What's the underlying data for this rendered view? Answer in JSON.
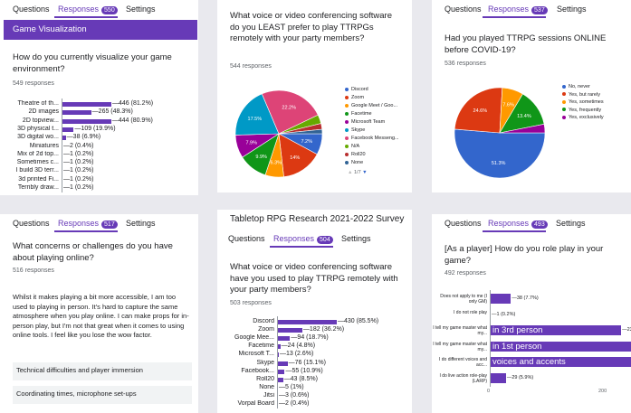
{
  "p1": {
    "tabs": [
      "Questions",
      "Responses",
      "Settings"
    ],
    "count": "550",
    "section": "Game Visualization",
    "question": "How do you currently visualize your game environment?",
    "responses": "549 responses",
    "rows": [
      {
        "label": "Theatre of th...",
        "value": 446,
        "text": "446 (81.2%)"
      },
      {
        "label": "2D images",
        "value": 265,
        "text": "265 (48.3%)"
      },
      {
        "label": "2D topview...",
        "value": 444,
        "text": "444 (80.9%)"
      },
      {
        "label": "3D physical t...",
        "value": 109,
        "text": "109 (19.9%)"
      },
      {
        "label": "3D digital wo...",
        "value": 38,
        "text": "38 (6.9%)"
      },
      {
        "label": "Miniatures",
        "value": 2,
        "text": "2 (0.4%)"
      },
      {
        "label": "Mix of 2d top...",
        "value": 1,
        "text": "1 (0.2%)"
      },
      {
        "label": "Sometimes c...",
        "value": 1,
        "text": "1 (0.2%)"
      },
      {
        "label": "I build 3D terr...",
        "value": 1,
        "text": "1 (0.2%)"
      },
      {
        "label": "3d printed Fi...",
        "value": 1,
        "text": "1 (0.2%)"
      },
      {
        "label": "Terribly draw...",
        "value": 1,
        "text": "1 (0.2%)"
      }
    ]
  },
  "p2": {
    "question": "What voice or video conferencing software do you LEAST prefer to play TTRPGs remotely with your party members?",
    "responses": "544 responses",
    "slices": [
      {
        "label": "Discord",
        "value": 7.2,
        "color": "#3366cc"
      },
      {
        "label": "Zoom",
        "value": 14,
        "color": "#dc3912"
      },
      {
        "label": "Google Meet / Goo...",
        "value": 6.3,
        "color": "#ff9900"
      },
      {
        "label": "Facetime",
        "value": 9.9,
        "color": "#109618"
      },
      {
        "label": "Microsoft Team",
        "value": 7.9,
        "color": "#990099"
      },
      {
        "label": "Skype",
        "value": 17.5,
        "color": "#0099c6"
      },
      {
        "label": "Facebook Messeng...",
        "value": 22.2,
        "color": "#dd4477"
      },
      {
        "label": "N/A",
        "value": 3,
        "color": "#66aa00"
      },
      {
        "label": "Roll20",
        "value": 2,
        "color": "#b82e2e"
      },
      {
        "label": "None",
        "value": 1.5,
        "color": "#316395"
      }
    ],
    "pct_labels": [
      "7.2%",
      "14%",
      "6.3%",
      "9.9%",
      "7.9%",
      "17.5%",
      "22.2%"
    ],
    "pager": "1/7"
  },
  "p3": {
    "tabs": [
      "Questions",
      "Responses",
      "Settings"
    ],
    "count": "537",
    "question": "Had you played TTRPG sessions ONLINE before COVID-19?",
    "responses": "536 responses",
    "slices": [
      {
        "label": "No, never",
        "value": 51.3,
        "color": "#3366cc"
      },
      {
        "label": "Yes, but rarely",
        "value": 24.6,
        "color": "#dc3912"
      },
      {
        "label": "Yes, sometimes",
        "value": 7.6,
        "color": "#ff9900"
      },
      {
        "label": "Yes, frequently",
        "value": 13.4,
        "color": "#109618"
      },
      {
        "label": "Yes, exclusively",
        "value": 3.1,
        "color": "#990099"
      }
    ],
    "pct_labels": [
      "51.3%",
      "24.6%",
      "7.6%",
      "13.4%"
    ]
  },
  "p4": {
    "tabs": [
      "Questions",
      "Responses",
      "Settings"
    ],
    "count": "517",
    "question": "What concerns or challenges do you have about playing online?",
    "responses": "516 responses",
    "answers": [
      "Whilst it makes playing a bit more accessible, I am too used to playing in person. It's hard to capture the same atmosphere when you play online. I can make props for in-person play, but I'm not that great when it comes to using online tools. I feel like you lose the wow factor.",
      "Technical difficulties and player immersion",
      "Coordinating times, microphone set-ups"
    ]
  },
  "p5": {
    "title": "Tabletop RPG Research 2021-2022 Survey",
    "tabs": [
      "Questions",
      "Responses",
      "Settings"
    ],
    "count": "504",
    "question": "What voice or video conferencing software have you used to play TTRPG remotely with your party members?",
    "responses": "503 responses",
    "rows": [
      {
        "label": "Discord",
        "value": 430,
        "text": "430 (85.5%)"
      },
      {
        "label": "Zoom",
        "value": 182,
        "text": "182 (36.2%)"
      },
      {
        "label": "Google Mee...",
        "value": 94,
        "text": "94 (18.7%)"
      },
      {
        "label": "Facetime",
        "value": 24,
        "text": "24 (4.8%)"
      },
      {
        "label": "Microsoft T...",
        "value": 13,
        "text": "13 (2.6%)"
      },
      {
        "label": "Skype",
        "value": 76,
        "text": "76 (15.1%)"
      },
      {
        "label": "Facebook...",
        "value": 55,
        "text": "55 (10.9%)"
      },
      {
        "label": "Roll20",
        "value": 43,
        "text": "43 (8.5%)"
      },
      {
        "label": "None",
        "value": 5,
        "text": "5 (1%)"
      },
      {
        "label": "Jitsi",
        "value": 3,
        "text": "3 (0.6%)"
      },
      {
        "label": "Vorpal Board",
        "value": 2,
        "text": "2 (0.4%)"
      }
    ]
  },
  "p6": {
    "tabs": [
      "Questions",
      "Responses",
      "Settings"
    ],
    "count": "493",
    "question": "[As a player] How do you role play in your game?",
    "responses": "492 responses",
    "rows": [
      {
        "label": "Does not apply to me (I only GM)",
        "value": 38,
        "text": "38 (7.7%)",
        "overlay": ""
      },
      {
        "label": "I do not role play",
        "value": 1,
        "text": "1 (0.2%)",
        "overlay": ""
      },
      {
        "label": "I tell my game master what my...",
        "value": 236,
        "text": "236 (48%)",
        "overlay": "in 3rd person"
      },
      {
        "label": "I tell my game master what my...",
        "value": 388,
        "text": "388 (7",
        "overlay": "in 1st person"
      },
      {
        "label": "I do different voices and acc...",
        "value": 328,
        "text": "328 (66.7%)",
        "overlay": "voices and accents"
      },
      {
        "label": "I do live action role-play (LARP)",
        "value": 29,
        "text": "29 (5.9%)",
        "overlay": ""
      }
    ],
    "axis": [
      "0",
      "200",
      "400"
    ]
  }
}
